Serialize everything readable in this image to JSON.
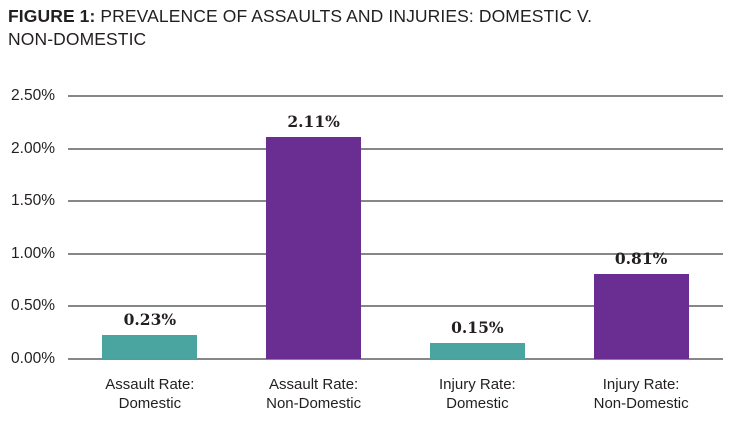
{
  "figure": {
    "title_prefix": "FIGURE 1:",
    "title_line1_rest": " PREVALENCE OF ASSAULTS AND INJURIES: DOMESTIC V.",
    "title_line2": "NON-DOMESTIC"
  },
  "colors": {
    "teal": "#4AA5A1",
    "purple": "#6A2D91",
    "gridline": "#85878A",
    "text": "#231F20"
  },
  "chart_data": {
    "type": "bar",
    "title": "FIGURE 1: PREVALENCE OF ASSAULTS AND INJURIES: DOMESTIC V. NON-DOMESTIC",
    "categories": [
      "Assault Rate: Domestic",
      "Assault Rate: Non-Domestic",
      "Injury Rate: Domestic",
      "Injury Rate: Non-Domestic"
    ],
    "category_lines": [
      [
        "Assault Rate:",
        "Domestic"
      ],
      [
        "Assault Rate:",
        "Non-Domestic"
      ],
      [
        "Injury Rate:",
        "Domestic"
      ],
      [
        "Injury Rate:",
        "Non-Domestic"
      ]
    ],
    "values": [
      0.23,
      2.11,
      0.15,
      0.81
    ],
    "value_labels": [
      "0.23%",
      "2.11%",
      "0.15%",
      "0.81%"
    ],
    "bar_colors": [
      "#4AA5A1",
      "#6A2D91",
      "#4AA5A1",
      "#6A2D91"
    ],
    "xlabel": "",
    "ylabel": "",
    "ylim": [
      0,
      2.5
    ],
    "yticks": [
      0,
      0.5,
      1.0,
      1.5,
      2.0,
      2.5
    ],
    "ytick_labels": [
      "0.00%",
      "0.50%",
      "1.00%",
      "1.50%",
      "2.00%",
      "2.50%"
    ],
    "grid": true,
    "legend": false
  }
}
